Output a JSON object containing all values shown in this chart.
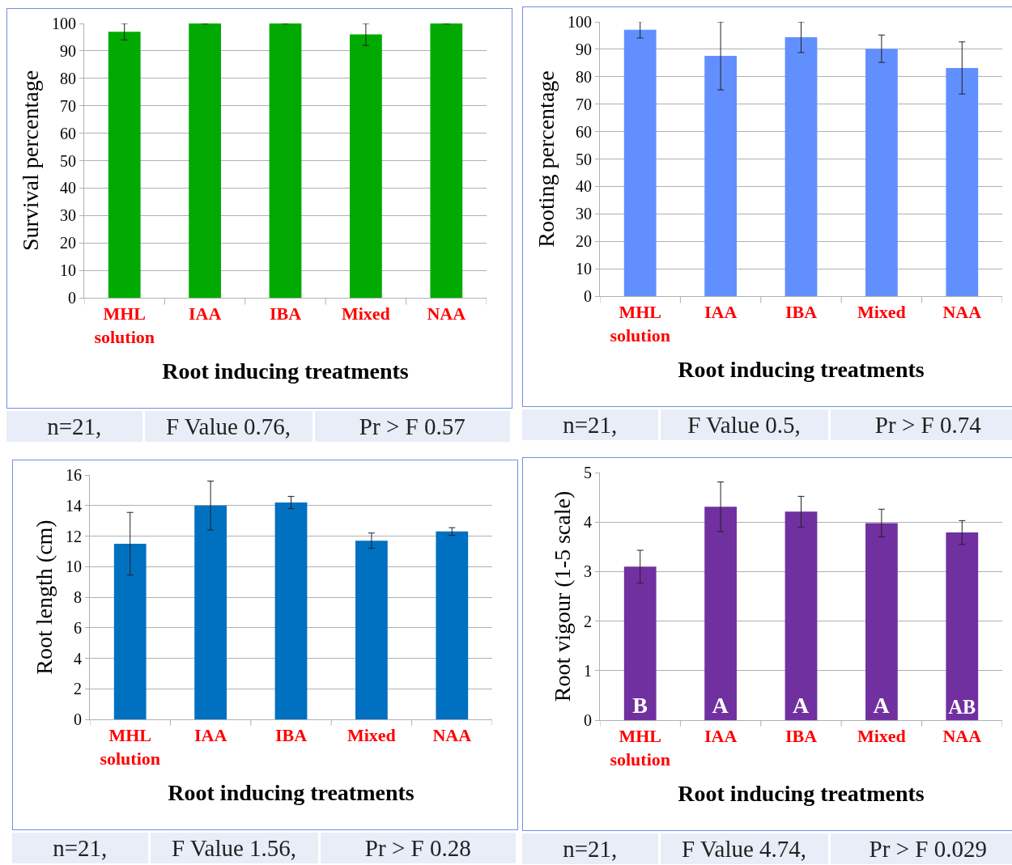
{
  "chart_data": [
    {
      "type": "bar",
      "xlabel": "Root inducing treatments",
      "ylabel": "Survival percentage",
      "categories": [
        "MHL solution",
        "IAA",
        "IBA",
        "Mixed",
        "NAA"
      ],
      "values": [
        97,
        100,
        100,
        96,
        100
      ],
      "errors": [
        3,
        0,
        0,
        4,
        0
      ],
      "color": "#00aa00",
      "ylim": [
        0,
        100
      ],
      "yticks": [
        0,
        10,
        20,
        30,
        40,
        50,
        60,
        70,
        80,
        90,
        100
      ],
      "grid": "y",
      "annotations": [
        "n=21,",
        "F Value 0.76,",
        "Pr > F 0.57"
      ]
    },
    {
      "type": "bar",
      "xlabel": "Root inducing treatments",
      "ylabel": "Rooting percentage",
      "categories": [
        "MHL solution",
        "IAA",
        "IBA",
        "Mixed",
        "NAA"
      ],
      "values": [
        97.1,
        87.6,
        94.4,
        90.2,
        83.2
      ],
      "errors": [
        3,
        12.4,
        5.6,
        5,
        9.5
      ],
      "color": "#628ffe",
      "ylim": [
        0,
        100
      ],
      "yticks": [
        0,
        10,
        20,
        30,
        40,
        50,
        60,
        70,
        80,
        90,
        100
      ],
      "grid": "y",
      "annotations": [
        "n=21,",
        "F Value 0.5,",
        "Pr > F 0.74"
      ]
    },
    {
      "type": "bar",
      "xlabel": "Root inducing treatments",
      "ylabel": "Root length (cm)",
      "categories": [
        "MHL solution",
        "IAA",
        "IBA",
        "Mixed",
        "NAA"
      ],
      "values": [
        11.5,
        14.0,
        14.2,
        11.7,
        12.3
      ],
      "errors": [
        2.05,
        1.6,
        0.4,
        0.5,
        0.25
      ],
      "color": "#0070c0",
      "ylim": [
        0,
        16
      ],
      "yticks": [
        0,
        2,
        4,
        6,
        8,
        10,
        12,
        14,
        16
      ],
      "grid": "y",
      "annotations": [
        "n=21,",
        "F Value 1.56,",
        "Pr > F 0.28"
      ]
    },
    {
      "type": "bar",
      "xlabel": "Root inducing treatments",
      "ylabel": "Root vigour (1-5 scale)",
      "categories": [
        "MHL solution",
        "IAA",
        "IBA",
        "Mixed",
        "NAA"
      ],
      "values": [
        3.1,
        4.31,
        4.21,
        3.98,
        3.79
      ],
      "errors": [
        0.33,
        0.5,
        0.31,
        0.28,
        0.24
      ],
      "color": "#7030a0",
      "ylim": [
        0,
        5
      ],
      "yticks": [
        0,
        1,
        2,
        3,
        4,
        5
      ],
      "grid": "y",
      "value_labels": [
        "B",
        "A",
        "A",
        "A",
        "AB"
      ],
      "annotations": [
        "n=21,",
        "F Value 4.74,",
        "Pr > F 0.029"
      ]
    }
  ]
}
